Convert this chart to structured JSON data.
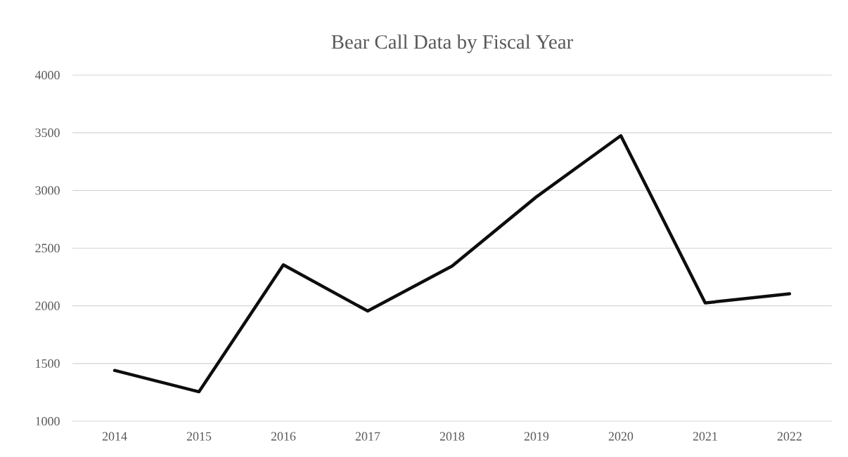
{
  "chart_data": {
    "type": "line",
    "title": "Bear Call Data by Fiscal Year",
    "categories": [
      "2014",
      "2015",
      "2016",
      "2017",
      "2018",
      "2019",
      "2020",
      "2021",
      "2022"
    ],
    "values": [
      1440,
      1255,
      2355,
      1955,
      2345,
      2945,
      3475,
      2025,
      2105
    ],
    "color": "#0d0d0d",
    "ylim": [
      1000,
      4000
    ],
    "yticks": [
      1000,
      1500,
      2000,
      2500,
      3000,
      3500,
      4000
    ],
    "grid": "y",
    "marker": "none",
    "line_style": "solid"
  }
}
